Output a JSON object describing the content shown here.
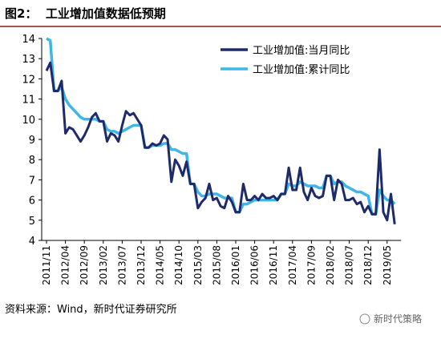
{
  "chart_data": {
    "type": "line",
    "title": "图2：  工业增加值数据低预期",
    "source": "资料来源：Wind，新时代证券研究所",
    "watermark": "新时代策略",
    "categories": [
      "2011/11",
      null,
      null,
      null,
      null,
      "2012/04",
      null,
      null,
      null,
      null,
      "2012/09",
      null,
      null,
      null,
      null,
      "2013/02",
      null,
      null,
      null,
      null,
      "2013/07",
      null,
      null,
      null,
      null,
      "2013/12",
      null,
      null,
      null,
      null,
      "2014/05",
      null,
      null,
      null,
      null,
      "2014/10",
      null,
      null,
      null,
      null,
      "2015/03",
      null,
      null,
      null,
      null,
      "2015/08",
      null,
      null,
      null,
      null,
      "2016/01",
      null,
      null,
      null,
      null,
      "2016/06",
      null,
      null,
      null,
      null,
      "2016/11",
      null,
      null,
      null,
      null,
      "2017/04",
      null,
      null,
      null,
      null,
      "2017/09",
      null,
      null,
      null,
      null,
      "2018/02",
      null,
      null,
      null,
      null,
      "2018/07",
      null,
      null,
      null,
      null,
      "2018/12",
      null,
      null,
      null,
      null,
      "2019/05",
      null,
      null
    ],
    "series": [
      {
        "name": "工业增加值:当月同比",
        "color": "#1f2a6b",
        "values": [
          12.4,
          12.8,
          11.4,
          11.4,
          11.9,
          9.3,
          9.6,
          9.5,
          9.2,
          8.9,
          9.2,
          9.6,
          10.1,
          10.3,
          9.9,
          9.9,
          8.9,
          9.3,
          9.2,
          8.9,
          9.7,
          10.4,
          10.2,
          10.3,
          10.0,
          9.7,
          8.6,
          8.6,
          8.8,
          8.7,
          8.8,
          9.2,
          9.0,
          6.9,
          8.0,
          7.7,
          7.2,
          7.9,
          6.8,
          6.8,
          5.6,
          5.9,
          6.1,
          6.8,
          6.0,
          6.1,
          5.7,
          5.6,
          6.2,
          5.9,
          5.4,
          5.4,
          6.8,
          6.0,
          6.0,
          6.2,
          6.0,
          6.3,
          6.1,
          6.1,
          6.2,
          6.0,
          6.3,
          6.3,
          7.6,
          6.5,
          6.5,
          7.6,
          6.4,
          6.0,
          6.6,
          6.2,
          6.1,
          6.2,
          7.2,
          7.2,
          6.0,
          7.0,
          6.8,
          6.0,
          6.0,
          6.1,
          5.8,
          5.9,
          5.4,
          5.7,
          5.3,
          5.3,
          8.5,
          5.4,
          5.0,
          6.3,
          4.8
        ]
      },
      {
        "name": "工业增加值:累计同比",
        "color": "#3fb6e8",
        "values": [
          14.0,
          13.9,
          11.4,
          11.4,
          11.6,
          11.0,
          10.7,
          10.5,
          10.3,
          10.1,
          10.0,
          10.0,
          10.0,
          10.0,
          9.9,
          9.9,
          9.5,
          9.4,
          9.4,
          9.3,
          9.4,
          9.5,
          9.6,
          9.7,
          9.7,
          9.7,
          8.6,
          8.6,
          8.7,
          8.7,
          8.7,
          8.8,
          8.8,
          8.5,
          8.5,
          8.4,
          8.3,
          8.3,
          6.8,
          6.8,
          6.4,
          6.2,
          6.2,
          6.3,
          6.3,
          6.3,
          6.2,
          6.1,
          6.1,
          6.1,
          5.4,
          5.4,
          5.8,
          5.8,
          5.9,
          6.0,
          6.0,
          6.0,
          6.0,
          6.0,
          6.0,
          6.0,
          6.3,
          6.3,
          6.8,
          6.7,
          6.7,
          6.9,
          6.8,
          6.7,
          6.7,
          6.7,
          6.6,
          6.6,
          7.2,
          7.2,
          6.8,
          6.9,
          6.9,
          6.7,
          6.6,
          6.5,
          6.4,
          6.4,
          6.3,
          6.2,
          5.3,
          5.3,
          6.5,
          6.2,
          6.0,
          6.0,
          5.8
        ]
      }
    ],
    "ylim": [
      4,
      14
    ],
    "yticks": [
      4,
      5,
      6,
      7,
      8,
      9,
      10,
      11,
      12,
      13,
      14
    ],
    "legend": "upper right"
  }
}
